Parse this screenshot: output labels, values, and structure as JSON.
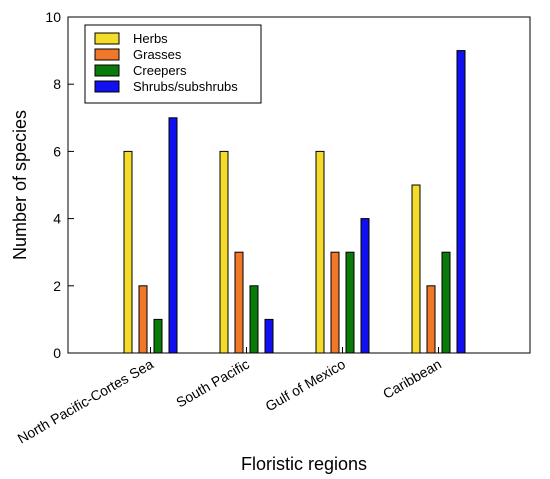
{
  "chart_data": {
    "type": "bar",
    "title": "",
    "xlabel": "Floristic regions",
    "ylabel": "Number of species",
    "ylim": [
      0,
      10
    ],
    "yticks": [
      "0",
      "2",
      "4",
      "6",
      "8",
      "10"
    ],
    "categories": [
      "North Pacific-Cortes Sea",
      "South Pacific",
      "Gulf of Mexico",
      "Caribbean"
    ],
    "series": [
      {
        "name": "Herbs",
        "color": "#f5dc2a",
        "values": [
          6,
          6,
          6,
          5
        ]
      },
      {
        "name": "Grasses",
        "color": "#f07828",
        "values": [
          2,
          3,
          3,
          2
        ]
      },
      {
        "name": "Creepers",
        "color": "#0a7a0a",
        "values": [
          1,
          2,
          3,
          3
        ]
      },
      {
        "name": "Shrubs/subshrubs",
        "color": "#1010f0",
        "values": [
          7,
          1,
          4,
          9
        ]
      }
    ],
    "legend_position": "top-left",
    "grid": false
  }
}
